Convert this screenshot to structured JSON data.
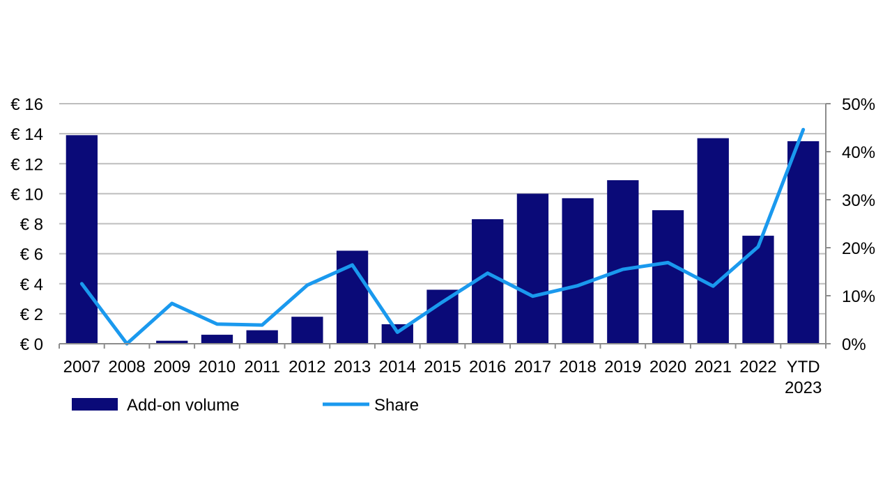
{
  "chart_data": {
    "type": "bar+line",
    "categories": [
      "2007",
      "2008",
      "2009",
      "2010",
      "2011",
      "2012",
      "2013",
      "2014",
      "2015",
      "2016",
      "2017",
      "2018",
      "2019",
      "2020",
      "2021",
      "2022",
      "YTD 2023"
    ],
    "series": [
      {
        "name": "Add-on volume",
        "type": "bar",
        "axis": "left",
        "color": "#0a0a78",
        "values": [
          13.9,
          0.0,
          0.2,
          0.6,
          0.9,
          1.8,
          6.2,
          1.3,
          3.6,
          8.3,
          10.0,
          9.7,
          10.9,
          8.9,
          13.7,
          7.2,
          13.5
        ]
      },
      {
        "name": "Share",
        "type": "line",
        "axis": "right",
        "color": "#1a99ee",
        "values": [
          12.5,
          0.0,
          8.4,
          4.1,
          3.9,
          12.2,
          16.4,
          2.4,
          8.7,
          14.7,
          9.9,
          12.1,
          15.5,
          16.9,
          12.0,
          20.2,
          44.6
        ]
      }
    ],
    "left_axis": {
      "ylim": [
        0,
        16
      ],
      "ticks": [
        0,
        2,
        4,
        6,
        8,
        10,
        12,
        14,
        16
      ],
      "tick_labels": [
        "€ 0",
        "€ 2",
        "€ 4",
        "€ 6",
        "€ 8",
        "€ 10",
        "€ 12",
        "€ 14",
        "€ 16"
      ]
    },
    "right_axis": {
      "ylim": [
        0,
        50
      ],
      "ticks": [
        0,
        10,
        20,
        30,
        40,
        50
      ],
      "tick_labels": [
        "0%",
        "10%",
        "20%",
        "30%",
        "40%",
        "50%"
      ]
    },
    "grid": true,
    "legend_position": "bottom-left",
    "title": "",
    "xlabel": "",
    "ylabel": ""
  }
}
